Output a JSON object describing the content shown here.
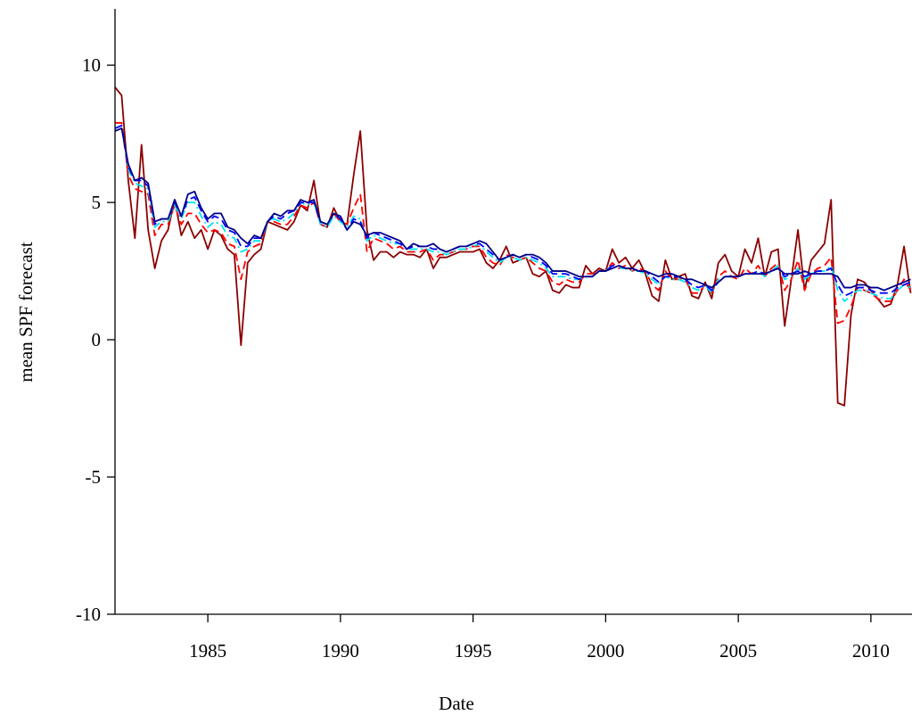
{
  "chart_data": {
    "type": "line",
    "xlabel": "Date",
    "ylabel": "mean SPF forecast",
    "xlim": [
      1981.5,
      2011.55
    ],
    "ylim": [
      -10,
      12.05
    ],
    "xticks": [
      1985,
      1990,
      1995,
      2000,
      2005,
      2010
    ],
    "yticks": [
      -10,
      -5,
      0,
      5,
      10
    ],
    "grid": false,
    "x": [
      1981.5,
      1981.75,
      1982,
      1982.25,
      1982.5,
      1982.75,
      1983,
      1983.25,
      1983.5,
      1983.75,
      1984,
      1984.25,
      1984.5,
      1984.75,
      1985,
      1985.25,
      1985.5,
      1985.75,
      1986,
      1986.25,
      1986.5,
      1986.75,
      1987,
      1987.25,
      1987.5,
      1987.75,
      1988,
      1988.25,
      1988.5,
      1988.75,
      1989,
      1989.25,
      1989.5,
      1989.75,
      1990,
      1990.25,
      1990.5,
      1990.75,
      1991,
      1991.25,
      1991.5,
      1991.75,
      1992,
      1992.25,
      1992.5,
      1992.75,
      1993,
      1993.25,
      1993.5,
      1993.75,
      1994,
      1994.25,
      1994.5,
      1994.75,
      1995,
      1995.25,
      1995.5,
      1995.75,
      1996,
      1996.25,
      1996.5,
      1996.75,
      1997,
      1997.25,
      1997.5,
      1997.75,
      1998,
      1998.25,
      1998.5,
      1998.75,
      1999,
      1999.25,
      1999.5,
      1999.75,
      2000,
      2000.25,
      2000.5,
      2000.75,
      2001,
      2001.25,
      2001.5,
      2001.75,
      2002,
      2002.25,
      2002.5,
      2002.75,
      2003,
      2003.25,
      2003.5,
      2003.75,
      2004,
      2004.25,
      2004.5,
      2004.75,
      2005,
      2005.25,
      2005.5,
      2005.75,
      2006,
      2006.25,
      2006.5,
      2006.75,
      2007,
      2007.25,
      2007.5,
      2007.75,
      2008,
      2008.25,
      2008.5,
      2008.75,
      2009,
      2009.25,
      2009.5,
      2009.75,
      2010,
      2010.25,
      2010.5,
      2010.75,
      2011,
      2011.25,
      2011.5
    ],
    "series": [
      {
        "color": "#8b0000",
        "linestyle": "solid",
        "values": [
          9.2,
          8.9,
          5.8,
          3.7,
          7.1,
          4.0,
          2.6,
          3.6,
          4.0,
          5.1,
          3.8,
          4.3,
          3.7,
          4.0,
          3.3,
          4.0,
          3.8,
          3.3,
          3.1,
          -0.2,
          2.8,
          3.1,
          3.3,
          4.3,
          4.2,
          4.1,
          4.0,
          4.3,
          4.9,
          4.7,
          5.8,
          4.2,
          4.1,
          4.8,
          4.3,
          4.2,
          6.0,
          7.6,
          4.0,
          2.9,
          3.2,
          3.2,
          3.0,
          3.2,
          3.1,
          3.1,
          3.0,
          3.3,
          2.6,
          3.0,
          3.0,
          3.1,
          3.2,
          3.2,
          3.2,
          3.3,
          2.8,
          2.6,
          2.9,
          3.4,
          2.8,
          2.9,
          3.0,
          2.4,
          2.3,
          2.5,
          1.8,
          1.7,
          2.0,
          1.9,
          1.9,
          2.7,
          2.4,
          2.6,
          2.5,
          3.3,
          2.8,
          3.0,
          2.6,
          2.9,
          2.4,
          1.6,
          1.4,
          2.9,
          2.2,
          2.3,
          2.4,
          1.6,
          1.5,
          2.1,
          1.5,
          2.8,
          3.1,
          2.5,
          2.3,
          3.3,
          2.8,
          3.7,
          2.3,
          3.2,
          3.3,
          0.5,
          2.2,
          4.0,
          1.8,
          2.9,
          3.2,
          3.5,
          5.1,
          -2.3,
          -2.4,
          0.9,
          2.2,
          2.1,
          1.8,
          1.5,
          1.2,
          1.3,
          2.0,
          3.4,
          1.7
        ]
      },
      {
        "color": "#ff0000",
        "linestyle": "dashed",
        "values": [
          7.9,
          7.9,
          6.0,
          5.5,
          5.4,
          5.3,
          3.8,
          4.2,
          4.2,
          4.9,
          4.2,
          4.6,
          4.6,
          4.2,
          3.9,
          4.0,
          3.9,
          3.5,
          3.4,
          2.2,
          3.2,
          3.4,
          3.5,
          4.3,
          4.3,
          4.2,
          4.2,
          4.5,
          4.9,
          4.8,
          5.0,
          4.2,
          4.1,
          4.6,
          4.3,
          4.2,
          4.8,
          5.3,
          3.2,
          3.7,
          3.6,
          3.5,
          3.3,
          3.4,
          3.2,
          3.2,
          3.2,
          3.3,
          2.9,
          3.1,
          3.1,
          3.2,
          3.3,
          3.3,
          3.4,
          3.4,
          3.0,
          2.8,
          2.7,
          3.1,
          3.0,
          2.9,
          3.0,
          2.8,
          2.6,
          2.5,
          2.1,
          2.0,
          2.2,
          2.1,
          2.1,
          2.4,
          2.4,
          2.5,
          2.5,
          2.8,
          2.6,
          2.7,
          2.5,
          2.6,
          2.5,
          2.0,
          1.8,
          2.5,
          2.2,
          2.2,
          2.2,
          1.7,
          1.7,
          2.0,
          1.7,
          2.3,
          2.5,
          2.3,
          2.2,
          2.6,
          2.4,
          2.7,
          2.3,
          2.6,
          2.8,
          1.8,
          2.2,
          2.9,
          1.8,
          2.4,
          2.6,
          2.7,
          3.0,
          0.6,
          0.7,
          1.2,
          1.9,
          1.8,
          1.7,
          1.5,
          1.4,
          1.4,
          1.8,
          2.2,
          1.8
        ]
      },
      {
        "color": "#00e5ee",
        "linestyle": "dashdot",
        "values": [
          7.7,
          7.8,
          6.2,
          5.7,
          5.6,
          5.5,
          4.1,
          4.3,
          4.3,
          4.9,
          4.4,
          5.0,
          5.0,
          4.5,
          4.1,
          4.3,
          4.2,
          3.8,
          3.7,
          3.2,
          3.3,
          3.6,
          3.6,
          4.3,
          4.4,
          4.3,
          4.4,
          4.6,
          5.0,
          4.9,
          5.0,
          4.2,
          4.1,
          4.5,
          4.3,
          4.1,
          4.5,
          4.4,
          3.6,
          3.8,
          3.7,
          3.6,
          3.5,
          3.5,
          3.3,
          3.3,
          3.3,
          3.3,
          3.2,
          3.2,
          3.1,
          3.2,
          3.3,
          3.3,
          3.4,
          3.5,
          3.2,
          3.0,
          2.8,
          3.0,
          3.0,
          2.9,
          3.0,
          2.9,
          2.8,
          2.6,
          2.3,
          2.3,
          2.3,
          2.2,
          2.2,
          2.3,
          2.3,
          2.5,
          2.5,
          2.7,
          2.6,
          2.6,
          2.5,
          2.5,
          2.4,
          2.2,
          2.0,
          2.3,
          2.2,
          2.2,
          2.1,
          1.9,
          1.8,
          2.0,
          1.7,
          2.2,
          2.3,
          2.3,
          2.3,
          2.4,
          2.4,
          2.5,
          2.3,
          2.5,
          2.7,
          2.2,
          2.3,
          2.6,
          2.2,
          2.4,
          2.5,
          2.5,
          2.7,
          1.8,
          1.4,
          1.6,
          1.8,
          1.8,
          1.7,
          1.6,
          1.5,
          1.5,
          1.8,
          2.0,
          1.9
        ]
      },
      {
        "color": "#0000ff",
        "linestyle": "dashed",
        "values": [
          7.7,
          7.8,
          6.3,
          5.8,
          5.8,
          5.6,
          4.2,
          4.4,
          4.4,
          5.0,
          4.5,
          5.1,
          5.2,
          4.7,
          4.3,
          4.5,
          4.4,
          4.0,
          3.9,
          3.4,
          3.4,
          3.7,
          3.7,
          4.3,
          4.5,
          4.4,
          4.6,
          4.7,
          5.0,
          5.0,
          5.0,
          4.3,
          4.2,
          4.6,
          4.4,
          4.0,
          4.4,
          4.3,
          3.7,
          3.9,
          3.8,
          3.7,
          3.6,
          3.5,
          3.3,
          3.4,
          3.4,
          3.4,
          3.3,
          3.3,
          3.2,
          3.3,
          3.4,
          3.4,
          3.5,
          3.5,
          3.3,
          3.1,
          2.9,
          3.0,
          3.1,
          3.0,
          3.1,
          3.0,
          2.9,
          2.7,
          2.4,
          2.4,
          2.4,
          2.3,
          2.2,
          2.3,
          2.3,
          2.5,
          2.5,
          2.7,
          2.7,
          2.6,
          2.6,
          2.5,
          2.5,
          2.3,
          2.1,
          2.3,
          2.3,
          2.3,
          2.2,
          2.0,
          1.9,
          2.0,
          1.8,
          2.1,
          2.3,
          2.3,
          2.3,
          2.4,
          2.4,
          2.5,
          2.4,
          2.5,
          2.6,
          2.3,
          2.4,
          2.5,
          2.3,
          2.4,
          2.5,
          2.5,
          2.6,
          2.0,
          1.6,
          1.7,
          1.9,
          1.9,
          1.8,
          1.7,
          1.7,
          1.7,
          1.9,
          2.0,
          2.1
        ]
      },
      {
        "color": "#00008b",
        "linestyle": "solid",
        "values": [
          7.6,
          7.7,
          6.4,
          5.8,
          5.9,
          5.7,
          4.3,
          4.4,
          4.4,
          5.1,
          4.5,
          5.3,
          5.4,
          4.8,
          4.4,
          4.6,
          4.6,
          4.1,
          4.0,
          3.7,
          3.5,
          3.8,
          3.7,
          4.3,
          4.6,
          4.5,
          4.7,
          4.7,
          5.1,
          5.0,
          5.1,
          4.3,
          4.2,
          4.6,
          4.5,
          4.0,
          4.3,
          4.2,
          3.8,
          3.9,
          3.9,
          3.8,
          3.7,
          3.6,
          3.3,
          3.5,
          3.4,
          3.4,
          3.5,
          3.3,
          3.2,
          3.3,
          3.4,
          3.4,
          3.5,
          3.6,
          3.5,
          3.2,
          2.9,
          3.0,
          3.1,
          3.0,
          3.1,
          3.1,
          3.0,
          2.8,
          2.5,
          2.5,
          2.5,
          2.4,
          2.3,
          2.3,
          2.3,
          2.5,
          2.5,
          2.6,
          2.7,
          2.6,
          2.6,
          2.5,
          2.5,
          2.4,
          2.3,
          2.4,
          2.4,
          2.3,
          2.2,
          2.2,
          2.1,
          2.0,
          1.9,
          2.1,
          2.3,
          2.3,
          2.3,
          2.4,
          2.4,
          2.4,
          2.4,
          2.5,
          2.6,
          2.4,
          2.4,
          2.4,
          2.5,
          2.4,
          2.4,
          2.4,
          2.4,
          2.3,
          1.9,
          1.9,
          2.0,
          2.0,
          1.9,
          1.9,
          1.8,
          1.9,
          2.0,
          2.1,
          2.2
        ]
      }
    ]
  }
}
